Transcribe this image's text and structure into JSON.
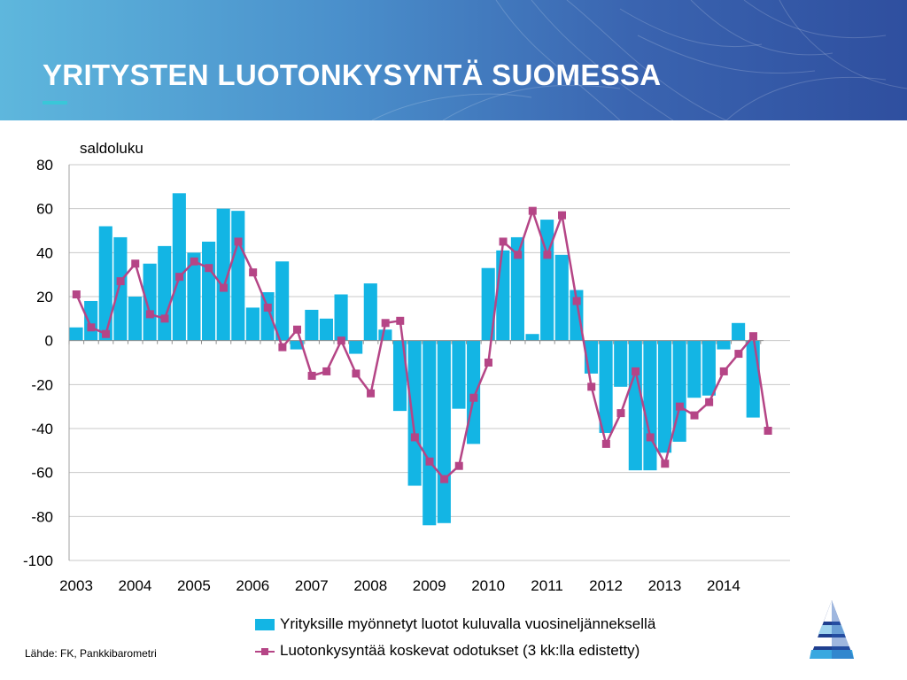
{
  "header": {
    "title": "YRITYSTEN LUOTONKYSYNTÄ SUOMESSA"
  },
  "source": "Lähde: FK, Pankkibarometri",
  "colors": {
    "bar": "#13b5e4",
    "line": "#b54586",
    "grid": "#c8c8c8",
    "header_start": "#5eb7dd",
    "header_end": "#2f4f9f",
    "accent": "#39c7d8"
  },
  "chart_data": {
    "type": "bar",
    "unit_label": "saldoluku",
    "ylim": [
      -100,
      80
    ],
    "yticks": [
      80,
      60,
      40,
      20,
      0,
      -20,
      -40,
      -60,
      -80,
      -100
    ],
    "x_start_year": 2003,
    "x_end_year": 2014,
    "year_labels": [
      "2003",
      "2004",
      "2005",
      "2006",
      "2007",
      "2008",
      "2009",
      "2010",
      "2011",
      "2012",
      "2013",
      "2014"
    ],
    "grid": true,
    "legend_position": "bottom",
    "series": [
      {
        "name": "Yrityksille myönnetyt luotot kuluvalla vuosineljänneksellä",
        "kind": "bar",
        "values": [
          6,
          18,
          52,
          47,
          20,
          35,
          43,
          67,
          40,
          45,
          60,
          59,
          15,
          22,
          36,
          -4,
          14,
          10,
          21,
          -6,
          26,
          5,
          -32,
          -66,
          -84,
          -83,
          -31,
          -47,
          33,
          41,
          47,
          3,
          55,
          39,
          23,
          -15,
          -42,
          -21,
          -59,
          -59,
          -51,
          -46,
          -26,
          -25,
          -4,
          8,
          -35
        ]
      },
      {
        "name": "Luotonkysyntää koskevat odotukset (3 kk:lla edistetty)",
        "kind": "line",
        "values": [
          21,
          6,
          3,
          27,
          35,
          12,
          10,
          29,
          36,
          33,
          24,
          45,
          31,
          15,
          -3,
          5,
          -16,
          -14,
          0,
          -15,
          -24,
          8,
          9,
          -44,
          -55,
          -63,
          -57,
          -26,
          -10,
          45,
          39,
          59,
          39,
          57,
          18,
          -21,
          -47,
          -33,
          -14,
          -44,
          -56,
          -30,
          -34,
          -28,
          -14,
          -6,
          2,
          -41
        ]
      }
    ]
  }
}
